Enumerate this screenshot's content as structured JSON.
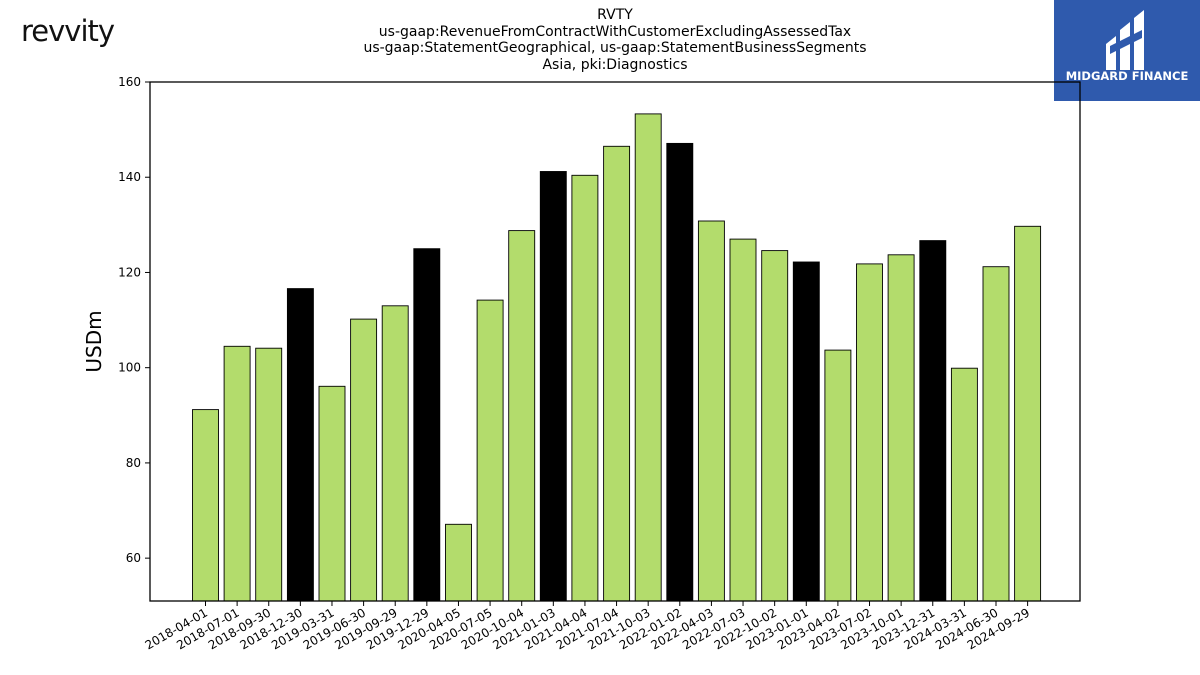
{
  "logos": {
    "left_brand": "revvity",
    "right_brand": "MIDGARD FINANCE",
    "right_brand_color": "#2f5aad"
  },
  "chart_data": {
    "type": "bar",
    "title_lines": [
      "RVTY",
      "us-gaap:RevenueFromContractWithCustomerExcludingAssessedTax",
      "us-gaap:StatementGeographical, us-gaap:StatementBusinessSegments",
      "Asia, pki:Diagnostics"
    ],
    "ylabel": "USDm",
    "xlabel": "",
    "ylim": [
      51,
      160
    ],
    "yticks": [
      60,
      80,
      100,
      120,
      140,
      160
    ],
    "grid": false,
    "colors": {
      "quarter": "#b3dc6c",
      "year_end": "#000000"
    },
    "categories": [
      "2018-04-01",
      "2018-07-01",
      "2018-09-30",
      "2018-12-30",
      "2019-03-31",
      "2019-06-30",
      "2019-09-29",
      "2019-12-29",
      "2020-04-05",
      "2020-07-05",
      "2020-10-04",
      "2021-01-03",
      "2021-04-04",
      "2021-07-04",
      "2021-10-03",
      "2022-01-02",
      "2022-04-03",
      "2022-07-03",
      "2022-10-02",
      "2023-01-01",
      "2023-04-02",
      "2023-07-02",
      "2023-10-01",
      "2023-12-31",
      "2024-03-31",
      "2024-06-30",
      "2024-09-29"
    ],
    "values": [
      91.2,
      104.5,
      104.1,
      116.6,
      96.1,
      110.2,
      113.0,
      125.0,
      67.1,
      114.2,
      128.8,
      141.2,
      140.4,
      146.5,
      153.3,
      147.1,
      130.8,
      127.0,
      124.6,
      122.2,
      103.7,
      121.8,
      123.7,
      126.7,
      99.9,
      121.2,
      129.7
    ],
    "year_end": [
      false,
      false,
      false,
      true,
      false,
      false,
      false,
      true,
      false,
      false,
      false,
      true,
      false,
      false,
      false,
      true,
      false,
      false,
      false,
      true,
      false,
      false,
      false,
      true,
      false,
      false,
      false
    ]
  }
}
